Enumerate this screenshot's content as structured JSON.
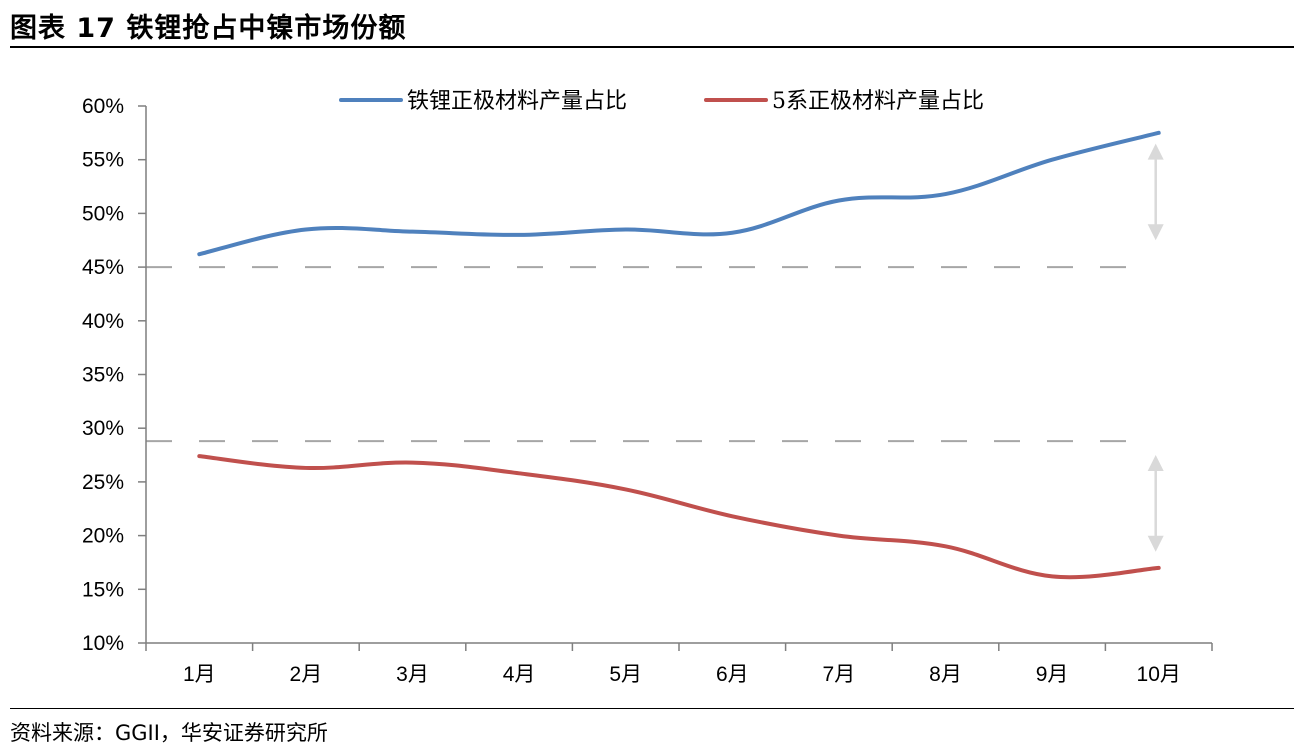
{
  "figure": {
    "title": "图表 17 铁锂抢占中镍市场份额",
    "source": "资料来源：GGII，华安证券研究所"
  },
  "colors": {
    "series_lfp": "#4f81bd",
    "series_ncm5": "#c0504d",
    "reference_line": "#a6a6a6",
    "arrow": "#d9d9d9",
    "axis": "#7f7f7f"
  },
  "chart_data": {
    "type": "line",
    "categories": [
      "1月",
      "2月",
      "3月",
      "4月",
      "5月",
      "6月",
      "7月",
      "8月",
      "9月",
      "10月"
    ],
    "series": [
      {
        "name": "铁锂正极材料产量占比",
        "values": [
          46.2,
          48.5,
          48.3,
          48.0,
          48.5,
          48.2,
          51.2,
          51.8,
          55.0,
          57.5
        ]
      },
      {
        "name": "5系正极材料产量占比",
        "values": [
          27.4,
          26.3,
          26.8,
          25.8,
          24.3,
          21.8,
          20.0,
          19.0,
          16.2,
          17.0
        ]
      }
    ],
    "y_ticks": [
      "10%",
      "15%",
      "20%",
      "25%",
      "30%",
      "35%",
      "40%",
      "45%",
      "50%",
      "55%",
      "60%"
    ],
    "ylim": [
      10,
      60
    ],
    "y_step": 5,
    "reference_lines": [
      45,
      28.8
    ],
    "arrows": [
      {
        "from": 47.5,
        "to": 56.5
      },
      {
        "from": 18.5,
        "to": 27.5
      }
    ],
    "legend_position": "top",
    "title": "",
    "xlabel": "",
    "ylabel": ""
  }
}
